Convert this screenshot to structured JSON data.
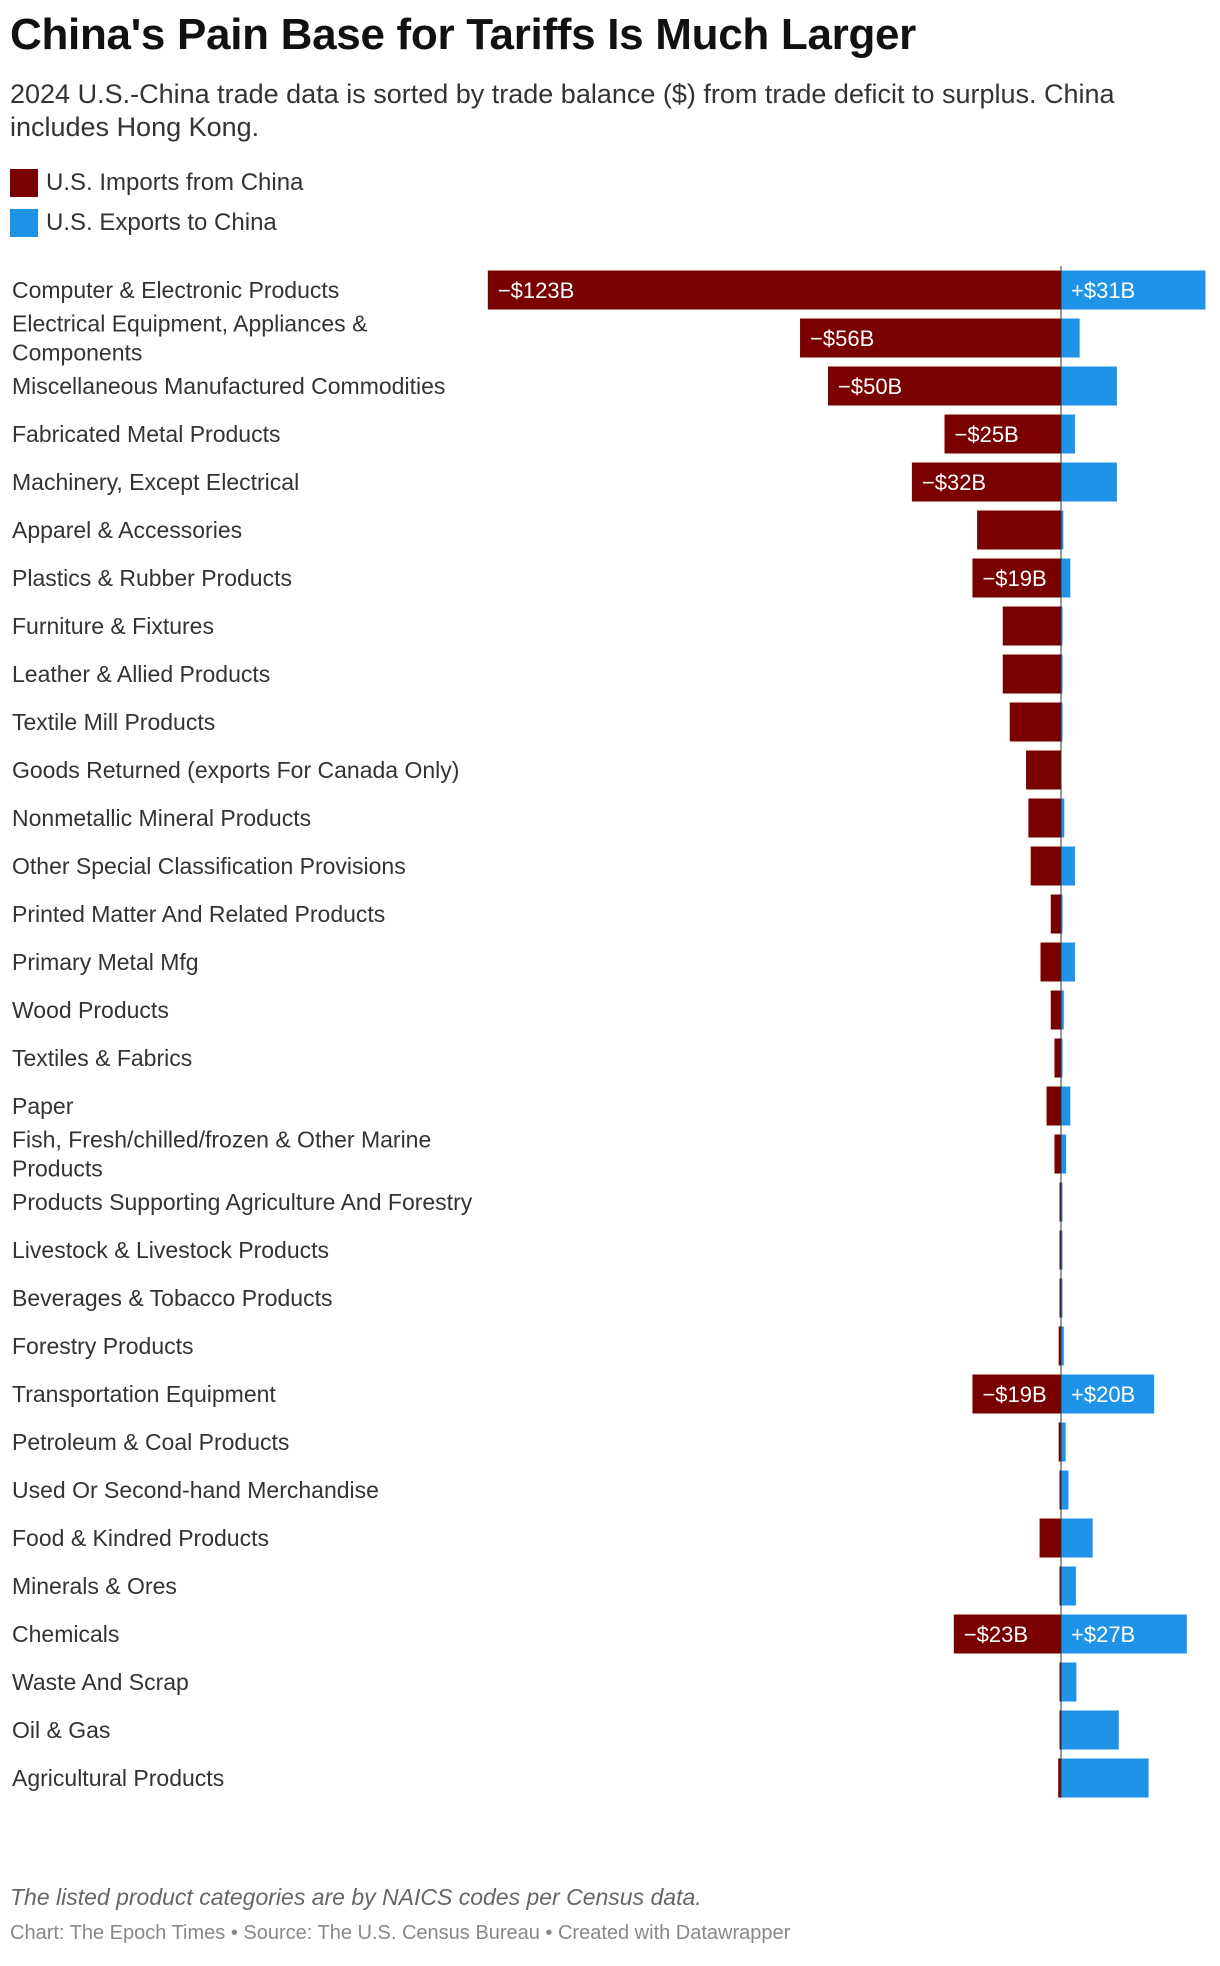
{
  "title": "China's Pain Base for Tariffs Is Much Larger",
  "subtitle": "2024 U.S.-China trade data is sorted by trade balance ($) from trade deficit to surplus. China includes Hong Kong.",
  "legend": {
    "imports_label": "U.S. Imports from China",
    "exports_label": "U.S. Exports to China"
  },
  "colors": {
    "imports": "#7a0000",
    "exports": "#1f94e6",
    "baseline": "#333333"
  },
  "note": "The listed product categories are by NAICS codes per Census data.",
  "credit": "Chart: The Epoch Times • Source: The U.S. Census Bureau • Created with Datawrapper",
  "chart_data": {
    "type": "bar",
    "orientation": "diverging-horizontal",
    "unit": "$B",
    "xlim": [
      -125,
      35
    ],
    "series": [
      {
        "name": "U.S. Imports from China",
        "key": "imports"
      },
      {
        "name": "U.S. Exports to China",
        "key": "exports"
      }
    ],
    "rows": [
      {
        "category": "Computer & Electronic Products",
        "imports": 123,
        "exports": 31,
        "import_label": "−$123B",
        "export_label": "+$31B"
      },
      {
        "category": "Electrical Equipment, Appliances & Components",
        "imports": 56,
        "exports": 4,
        "import_label": "−$56B",
        "export_label": ""
      },
      {
        "category": "Miscellaneous Manufactured Commodities",
        "imports": 50,
        "exports": 12,
        "import_label": "−$50B",
        "export_label": ""
      },
      {
        "category": "Fabricated Metal Products",
        "imports": 25,
        "exports": 3,
        "import_label": "−$25B",
        "export_label": ""
      },
      {
        "category": "Machinery, Except Electrical",
        "imports": 32,
        "exports": 12,
        "import_label": "−$32B",
        "export_label": ""
      },
      {
        "category": "Apparel & Accessories",
        "imports": 18,
        "exports": 0.5,
        "import_label": "",
        "export_label": ""
      },
      {
        "category": "Plastics & Rubber Products",
        "imports": 19,
        "exports": 2,
        "import_label": "−$19B",
        "export_label": ""
      },
      {
        "category": "Furniture & Fixtures",
        "imports": 12.5,
        "exports": 0.3,
        "import_label": "",
        "export_label": ""
      },
      {
        "category": "Leather & Allied Products",
        "imports": 12.5,
        "exports": 0.3,
        "import_label": "",
        "export_label": ""
      },
      {
        "category": "Textile Mill Products",
        "imports": 11,
        "exports": 0.3,
        "import_label": "",
        "export_label": ""
      },
      {
        "category": "Goods Returned (exports For Canada Only)",
        "imports": 7.5,
        "exports": 0,
        "import_label": "",
        "export_label": ""
      },
      {
        "category": "Nonmetallic Mineral Products",
        "imports": 7,
        "exports": 0.7,
        "import_label": "",
        "export_label": ""
      },
      {
        "category": "Other Special Classification Provisions",
        "imports": 6.5,
        "exports": 3,
        "import_label": "",
        "export_label": ""
      },
      {
        "category": "Printed Matter And Related Products",
        "imports": 2.2,
        "exports": 0.3,
        "import_label": "",
        "export_label": ""
      },
      {
        "category": "Primary Metal Mfg",
        "imports": 4.4,
        "exports": 3,
        "import_label": "",
        "export_label": ""
      },
      {
        "category": "Wood Products",
        "imports": 2.2,
        "exports": 0.6,
        "import_label": "",
        "export_label": ""
      },
      {
        "category": "Textiles & Fabrics",
        "imports": 1.4,
        "exports": 0.2,
        "import_label": "",
        "export_label": ""
      },
      {
        "category": "Paper",
        "imports": 3.1,
        "exports": 2,
        "import_label": "",
        "export_label": ""
      },
      {
        "category": "Fish, Fresh/chilled/frozen & Other Marine Products",
        "imports": 1.4,
        "exports": 1.1,
        "import_label": "",
        "export_label": ""
      },
      {
        "category": "Products Supporting Agriculture And Forestry",
        "imports": 0.1,
        "exports": 0.2,
        "import_label": "",
        "export_label": ""
      },
      {
        "category": "Livestock & Livestock Products",
        "imports": 0.1,
        "exports": 0.3,
        "import_label": "",
        "export_label": ""
      },
      {
        "category": "Beverages & Tobacco Products",
        "imports": 0.1,
        "exports": 0.3,
        "import_label": "",
        "export_label": ""
      },
      {
        "category": "Forestry Products",
        "imports": 0.5,
        "exports": 0.6,
        "import_label": "",
        "export_label": ""
      },
      {
        "category": "Transportation Equipment",
        "imports": 19,
        "exports": 20,
        "import_label": "−$19B",
        "export_label": "+$20B"
      },
      {
        "category": "Petroleum & Coal Products",
        "imports": 0.5,
        "exports": 1,
        "import_label": "",
        "export_label": ""
      },
      {
        "category": "Used Or Second-hand Merchandise",
        "imports": 0.2,
        "exports": 1.6,
        "import_label": "",
        "export_label": ""
      },
      {
        "category": "Food & Kindred Products",
        "imports": 4.6,
        "exports": 6.8,
        "import_label": "",
        "export_label": ""
      },
      {
        "category": "Minerals & Ores",
        "imports": 0.2,
        "exports": 3.2,
        "import_label": "",
        "export_label": ""
      },
      {
        "category": "Chemicals",
        "imports": 23,
        "exports": 27,
        "import_label": "−$23B",
        "export_label": "+$27B"
      },
      {
        "category": "Waste And Scrap",
        "imports": 0.1,
        "exports": 3.3,
        "import_label": "",
        "export_label": ""
      },
      {
        "category": "Oil & Gas",
        "imports": 0.1,
        "exports": 12.4,
        "import_label": "",
        "export_label": ""
      },
      {
        "category": "Agricultural Products",
        "imports": 0.6,
        "exports": 18.8,
        "import_label": "",
        "export_label": ""
      }
    ]
  }
}
